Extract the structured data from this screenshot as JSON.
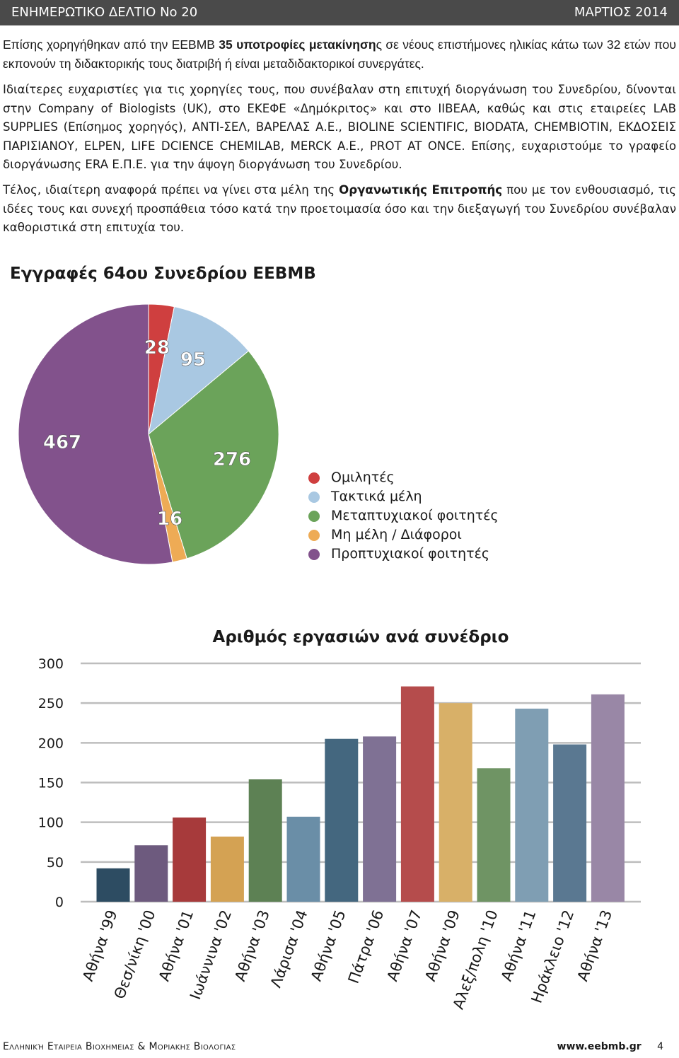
{
  "header": {
    "left": "ΕΝΗΜΕΡΩΤΙΚΟ ΔΕΛΤΙΟ No 20",
    "right": "ΜΑΡΤΙΟΣ 2014"
  },
  "paragraphs": {
    "p1_before": "Επίσης χορηγήθηκαν από την ΕΕΒΜΒ ",
    "p1_bold": "35 υποτροφίες μετακίνηση",
    "p1_after": "ς σε νέους επιστήμονες ηλικίας κάτω των 32 ετών που εκπονούν τη διδακτορικής τους διατριβή ή είναι μεταδιδακτορικοί συνεργάτες.",
    "p2": "Ιδιαίτερες ευχαριστίες για τις χορηγίες τους, που συνέβαλαν στη επιτυχή διοργάνωση του Συνεδρίου, δίνονται στην Company of Biologists (UK), στο ΕΚΕΦΕ «Δημόκριτος» και στο ΙΙΒΕΑΑ, καθώς και στις εταιρείες LAB SUPPLIES (Επίσημος χορηγός), ΑΝΤΙ-ΣΕΛ, ΒΑΡΕΛΑΣ Α.Ε., BIOLINE SCIENTIFIC, BIODATA, CHEMBIOTIN, ΕΚΔΟΣΕΙΣ ΠΑΡΙΣΙΑΝΟΥ, ELPEN, LIFE DCIENCE CHEMILAB, MERCK A.E., PROT AT ONCE. Επίσης, ευχαριστούμε το γραφείο διοργάνωσης ERA Ε.Π.Ε. για την άψογη διοργάνωση του Συνεδρίου.",
    "p3_before": "Τέλος, ιδιαίτερη αναφορά πρέπει να γίνει στα μέλη της ",
    "p3_bold": "Οργανωτικής Επιτροπής",
    "p3_after": " που με τον ενθουσιασμό, τις ιδέες τους και συνεχή προσπάθεια τόσο κατά την προετοιμασία όσο και την διεξαγωγή του Συνεδρίου συνέβαλαν καθοριστικά στη επιτυχία του."
  },
  "chart_data": [
    {
      "type": "pie",
      "title": "Εγγραφές 64ου Συνεδρίου ΕΕΒΜΒ",
      "legend_position": "right",
      "slices": [
        {
          "label": "Ομιλητές",
          "value": 28,
          "color": "#cf3f3f"
        },
        {
          "label": "Τακτικά μέλη",
          "value": 95,
          "color": "#a9c8e2"
        },
        {
          "label": "Μεταπτυχιακοί φοιτητές",
          "value": 276,
          "color": "#6ba35a"
        },
        {
          "label": "Μη μέλη / Διάφοροι",
          "value": 16,
          "color": "#eeab55"
        },
        {
          "label": "Προπτυχιακοί φοιτητές",
          "value": 467,
          "color": "#82528c"
        }
      ]
    },
    {
      "type": "bar",
      "title": "Αριθμός εργασιών ανά συνέδριο",
      "categories": [
        "Αθήνα '99",
        "Θεσ/νίκη '00",
        "Αθήνα '01",
        "Ιωάννινα '02",
        "Αθήνα '03",
        "Λάρισα '04",
        "Αθήνα '05",
        "Πάτρα '06",
        "Αθήνα '07",
        "Αθήνα '09",
        "Αλεξ/πολη '10",
        "Αθήνα '11",
        "Ηράκλειο '12",
        "Αθήνα '13"
      ],
      "values": [
        42,
        71,
        106,
        82,
        154,
        107,
        205,
        208,
        271,
        250,
        168,
        243,
        198,
        261
      ],
      "colors": [
        "#2d4c62",
        "#6d5a7e",
        "#a73a3b",
        "#d4a253",
        "#5d8154",
        "#6a8ea7",
        "#44677f",
        "#7f7194",
        "#b54c4c",
        "#d8b068",
        "#6f9464",
        "#7f9eb3",
        "#5a7891",
        "#9987a6"
      ],
      "ylim": [
        0,
        300
      ],
      "yticks": [
        0,
        50,
        100,
        150,
        200,
        250,
        300
      ],
      "grid": true
    }
  ],
  "footer": {
    "left": "Ελληνική Εταιρεια Βιοχημειας & Μοριακης Βιολογιας",
    "url": "www.eebmb.gr",
    "page": "4"
  }
}
